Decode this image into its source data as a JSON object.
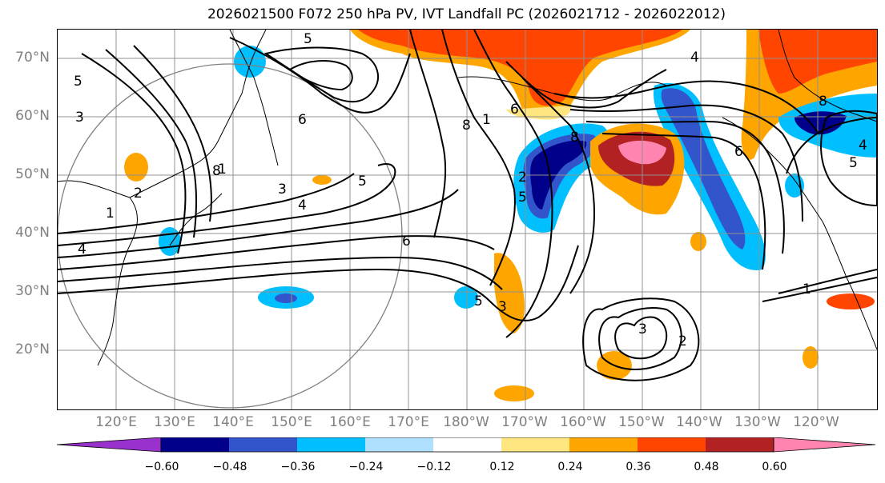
{
  "title": "2026021500 F072 250 hPa PV, IVT Landfall PC (2026021712 - 2026022012)",
  "lat_labels": [
    "70°N",
    "60°N",
    "50°N",
    "40°N",
    "30°N",
    "20°N"
  ],
  "lon_labels": [
    "120°E",
    "130°E",
    "140°E",
    "150°E",
    "160°E",
    "170°E",
    "180°W",
    "170°W",
    "160°W",
    "150°W",
    "140°W",
    "130°W",
    "120°W"
  ],
  "colorbar": {
    "ticks": [
      "−0.60",
      "−0.48",
      "−0.36",
      "−0.24",
      "−0.12",
      "0.12",
      "0.24",
      "0.36",
      "0.48",
      "0.60"
    ],
    "colors": [
      "#9932cc",
      "#00008b",
      "#3355cc",
      "#00bfff",
      "#b0e0ff",
      "#ffffff",
      "#ffe680",
      "#ffa500",
      "#ff4500",
      "#b22222",
      "#ff85b0"
    ]
  },
  "contour_labels": [
    "5",
    "4",
    "3",
    "6",
    "8",
    "1",
    "2",
    "5",
    "3",
    "4",
    "5",
    "6",
    "1",
    "8",
    "1",
    "5",
    "3",
    "2",
    "5",
    "6",
    "8",
    "1",
    "3",
    "2",
    "6",
    "4",
    "5",
    "4",
    "8"
  ],
  "map": {
    "lon_range": [
      "110°E",
      "110°W"
    ],
    "lat_range": [
      "10°N",
      "75°N"
    ],
    "grid": true
  }
}
